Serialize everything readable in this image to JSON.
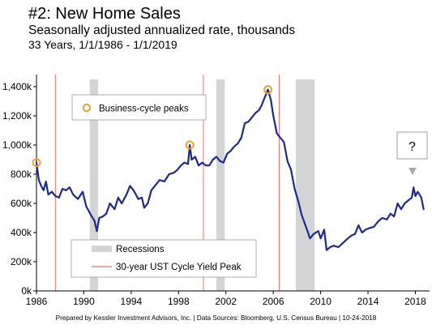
{
  "title": "#2: New Home Sales",
  "subtitle": "Seasonally adjusted annualized rate, thousands",
  "period": "33 Years, 1/1/1986 - 1/1/2019",
  "footer": "Prepared by Kessler Investment Advisors, Inc. | Data Sources: Bloomberg, U.S. Census Bureau | 10-24-2018",
  "colors": {
    "line": "#1f2a87",
    "recession": "#d3d4d6",
    "yield_peak": "#e8766f",
    "peak_marker": "#f0a030",
    "arrow": "#a8a9ab"
  },
  "chart_data": {
    "type": "line",
    "xlim": [
      1986,
      2019.2
    ],
    "ylim": [
      0,
      1450
    ],
    "x_ticks": [
      1986,
      1990,
      1994,
      1998,
      2002,
      2006,
      2010,
      2014,
      2018
    ],
    "y_ticks": [
      0,
      200,
      400,
      600,
      800,
      1000,
      1200,
      1400
    ],
    "y_tick_labels": [
      "0k",
      "200k",
      "400k",
      "600k",
      "800k",
      "1,000k",
      "1,200k",
      "1,400k"
    ],
    "series": [
      {
        "points": [
          [
            1986.0,
            880
          ],
          [
            1986.2,
            760
          ],
          [
            1986.4,
            720
          ],
          [
            1986.6,
            690
          ],
          [
            1986.8,
            750
          ],
          [
            1987.0,
            660
          ],
          [
            1987.3,
            680
          ],
          [
            1987.6,
            650
          ],
          [
            1987.9,
            640
          ],
          [
            1988.2,
            700
          ],
          [
            1988.5,
            690
          ],
          [
            1988.8,
            710
          ],
          [
            1989.1,
            660
          ],
          [
            1989.5,
            630
          ],
          [
            1989.9,
            680
          ],
          [
            1990.2,
            580
          ],
          [
            1990.6,
            520
          ],
          [
            1990.9,
            480
          ],
          [
            1991.1,
            410
          ],
          [
            1991.3,
            500
          ],
          [
            1991.6,
            510
          ],
          [
            1991.9,
            530
          ],
          [
            1992.2,
            600
          ],
          [
            1992.6,
            560
          ],
          [
            1992.9,
            640
          ],
          [
            1993.2,
            600
          ],
          [
            1993.6,
            660
          ],
          [
            1993.9,
            720
          ],
          [
            1994.2,
            690
          ],
          [
            1994.6,
            630
          ],
          [
            1994.9,
            640
          ],
          [
            1995.1,
            570
          ],
          [
            1995.4,
            600
          ],
          [
            1995.7,
            690
          ],
          [
            1996.0,
            720
          ],
          [
            1996.4,
            760
          ],
          [
            1996.8,
            750
          ],
          [
            1997.2,
            800
          ],
          [
            1997.6,
            810
          ],
          [
            1997.9,
            830
          ],
          [
            1998.2,
            860
          ],
          [
            1998.5,
            880
          ],
          [
            1998.8,
            870
          ],
          [
            1998.95,
            1000
          ],
          [
            1999.1,
            900
          ],
          [
            1999.4,
            920
          ],
          [
            1999.7,
            860
          ],
          [
            2000.0,
            880
          ],
          [
            2000.3,
            860
          ],
          [
            2000.6,
            860
          ],
          [
            2000.9,
            900
          ],
          [
            2001.2,
            920
          ],
          [
            2001.5,
            890
          ],
          [
            2001.8,
            880
          ],
          [
            2002.1,
            940
          ],
          [
            2002.4,
            960
          ],
          [
            2002.7,
            990
          ],
          [
            2003.0,
            1010
          ],
          [
            2003.3,
            1050
          ],
          [
            2003.6,
            1150
          ],
          [
            2003.9,
            1160
          ],
          [
            2004.2,
            1190
          ],
          [
            2004.5,
            1220
          ],
          [
            2004.8,
            1240
          ],
          [
            2005.0,
            1270
          ],
          [
            2005.3,
            1330
          ],
          [
            2005.55,
            1380
          ],
          [
            2005.8,
            1310
          ],
          [
            2006.0,
            1200
          ],
          [
            2006.3,
            1080
          ],
          [
            2006.6,
            1050
          ],
          [
            2006.9,
            1020
          ],
          [
            2007.2,
            890
          ],
          [
            2007.5,
            830
          ],
          [
            2007.8,
            700
          ],
          [
            2008.1,
            620
          ],
          [
            2008.4,
            520
          ],
          [
            2008.8,
            430
          ],
          [
            2009.1,
            360
          ],
          [
            2009.4,
            390
          ],
          [
            2009.8,
            410
          ],
          [
            2010.0,
            360
          ],
          [
            2010.3,
            420
          ],
          [
            2010.5,
            280
          ],
          [
            2010.8,
            300
          ],
          [
            2011.1,
            310
          ],
          [
            2011.5,
            300
          ],
          [
            2011.9,
            330
          ],
          [
            2012.3,
            360
          ],
          [
            2012.6,
            380
          ],
          [
            2012.9,
            390
          ],
          [
            2013.2,
            450
          ],
          [
            2013.5,
            400
          ],
          [
            2013.8,
            420
          ],
          [
            2014.1,
            430
          ],
          [
            2014.5,
            440
          ],
          [
            2014.9,
            480
          ],
          [
            2015.2,
            500
          ],
          [
            2015.6,
            490
          ],
          [
            2015.9,
            530
          ],
          [
            2016.2,
            510
          ],
          [
            2016.5,
            600
          ],
          [
            2016.8,
            560
          ],
          [
            2017.1,
            600
          ],
          [
            2017.4,
            620
          ],
          [
            2017.7,
            640
          ],
          [
            2017.85,
            710
          ],
          [
            2018.0,
            650
          ],
          [
            2018.2,
            680
          ],
          [
            2018.5,
            640
          ],
          [
            2018.7,
            560
          ]
        ]
      }
    ],
    "recessions": [
      [
        1990.5,
        1991.2
      ],
      [
        2001.2,
        2001.9
      ],
      [
        2007.9,
        2009.5
      ]
    ],
    "yield_peaks": [
      1987.6,
      2000.1,
      2006.5
    ],
    "business_cycle_peaks": [
      [
        1986.0,
        880
      ],
      [
        1998.95,
        1000
      ],
      [
        2005.55,
        1380
      ]
    ],
    "legend_peaks_label": "Business-cycle peaks",
    "legend_recessions_label": "Recessions",
    "legend_yield_label": "30-year UST Cycle Yield Peak",
    "callout_text": "?"
  }
}
